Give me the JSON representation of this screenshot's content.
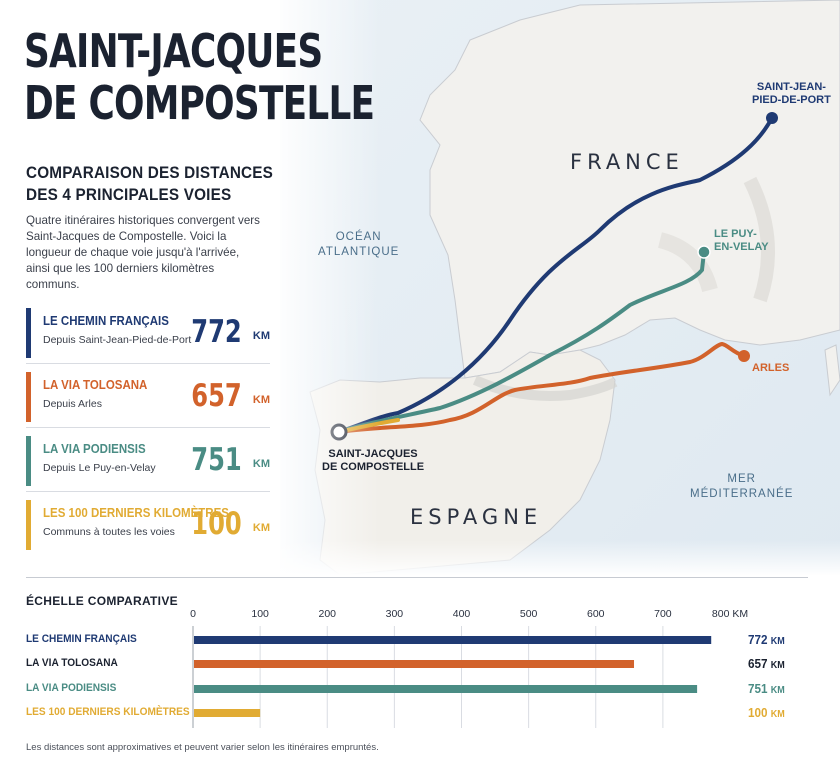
{
  "header": {
    "title_line1": "SAINT-JACQUES",
    "title_line2": "DE COMPOSTELLE",
    "subtitle_line1": "COMPARAISON DES DISTANCES",
    "subtitle_line2": "DES 4 PRINCIPALES VOIES",
    "intro": "Quatre itinéraires historiques convergent vers Saint-Jacques de Compostelle. Voici la longueur de chaque voie jusqu'à l'arrivée, ainsi que les 100 derniers kilomètres communs."
  },
  "routes": [
    {
      "name": "LE CHEMIN FRANÇAIS",
      "desc": "Depuis Saint-Jean-Pied-de-Port",
      "value": "772",
      "unit": "KM",
      "color": "#1f3a73"
    },
    {
      "name": "LA VIA TOLOSANA",
      "desc": "Depuis Arles",
      "value": "657",
      "unit": "KM",
      "color": "#d2622b"
    },
    {
      "name": "LA VIA PODIENSIS",
      "desc": "Depuis Le Puy-en-Velay",
      "value": "751",
      "unit": "KM",
      "color": "#4a8c84"
    },
    {
      "name": "LES 100 DERNIERS KILOMÈTRES",
      "desc": "Communs à toutes les voies",
      "value": "100",
      "unit": "KM",
      "color": "#e1ab33"
    }
  ],
  "map": {
    "country_france": "FRANCE",
    "country_spain": "ESPAGNE",
    "sea_atlantic_1": "OCÉAN",
    "sea_atlantic_2": "ATLANTIQUE",
    "sea_med_1": "MER",
    "sea_med_2": "MÉDITERRANÉE",
    "city_sjpp_1": "SAINT-JEAN-",
    "city_sjpp_2": "PIED-DE-PORT",
    "city_puy_1": "LE PUY-",
    "city_puy_2": "EN-VELAY",
    "city_arles": "ARLES",
    "city_santiago_1": "SAINT-JACQUES",
    "city_santiago_2": "DE COMPOSTELLE"
  },
  "scale": {
    "title": "ÉCHELLE COMPARATIVE",
    "max_label": "800 KM"
  },
  "chart_data": {
    "type": "bar",
    "orientation": "horizontal",
    "title": "ÉCHELLE COMPARATIVE",
    "categories": [
      "LE CHEMIN FRANÇAIS",
      "LA VIA TOLOSANA",
      "LA VIA PODIENSIS",
      "LES 100 DERNIERS KILOMÈTRES"
    ],
    "values": [
      772,
      657,
      751,
      100
    ],
    "value_labels": [
      "772",
      "657",
      "751",
      "100"
    ],
    "value_unit": "KM",
    "colors": [
      "#1f3a73",
      "#d2622b",
      "#4a8c84",
      "#e1ab33"
    ],
    "label_colors": [
      "#1f3a73",
      "#1b2230",
      "#4a8c84",
      "#e1ab33"
    ],
    "ticks": [
      0,
      100,
      200,
      300,
      400,
      500,
      600,
      700
    ],
    "xlim": [
      0,
      800
    ],
    "grid": true
  },
  "footer": {
    "note": "Les distances sont approximatives et peuvent varier selon les itinéraires empruntés."
  }
}
